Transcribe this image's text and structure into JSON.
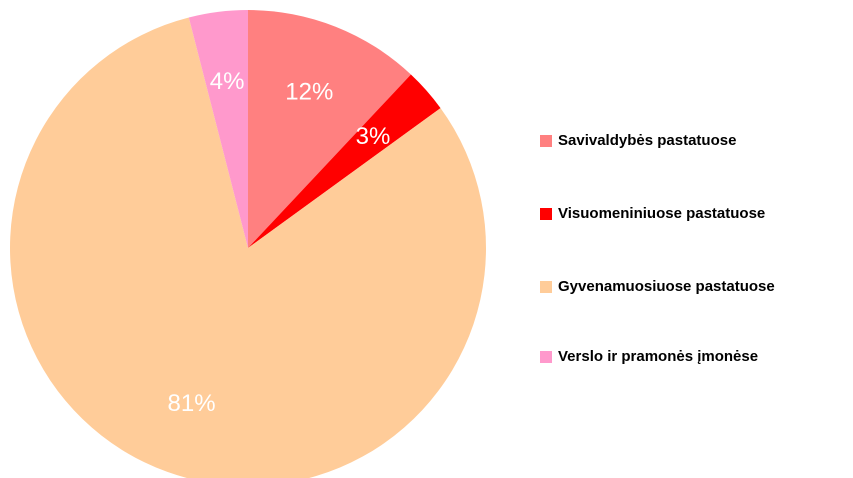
{
  "chart_data": {
    "type": "pie",
    "categories": [
      "Savivaldybės pastatuose",
      "Visuomeniniuose pastatuose",
      "Gyvenamuosiuose pastatuose",
      "Verslo ir pramonės įmonėse"
    ],
    "values": [
      12,
      3,
      81,
      4
    ],
    "value_labels": [
      "12%",
      "3%",
      "81%",
      "4%"
    ],
    "colors": [
      "#ff8080",
      "#ff0000",
      "#ffcc99",
      "#ff99cc"
    ],
    "legend": "right"
  }
}
